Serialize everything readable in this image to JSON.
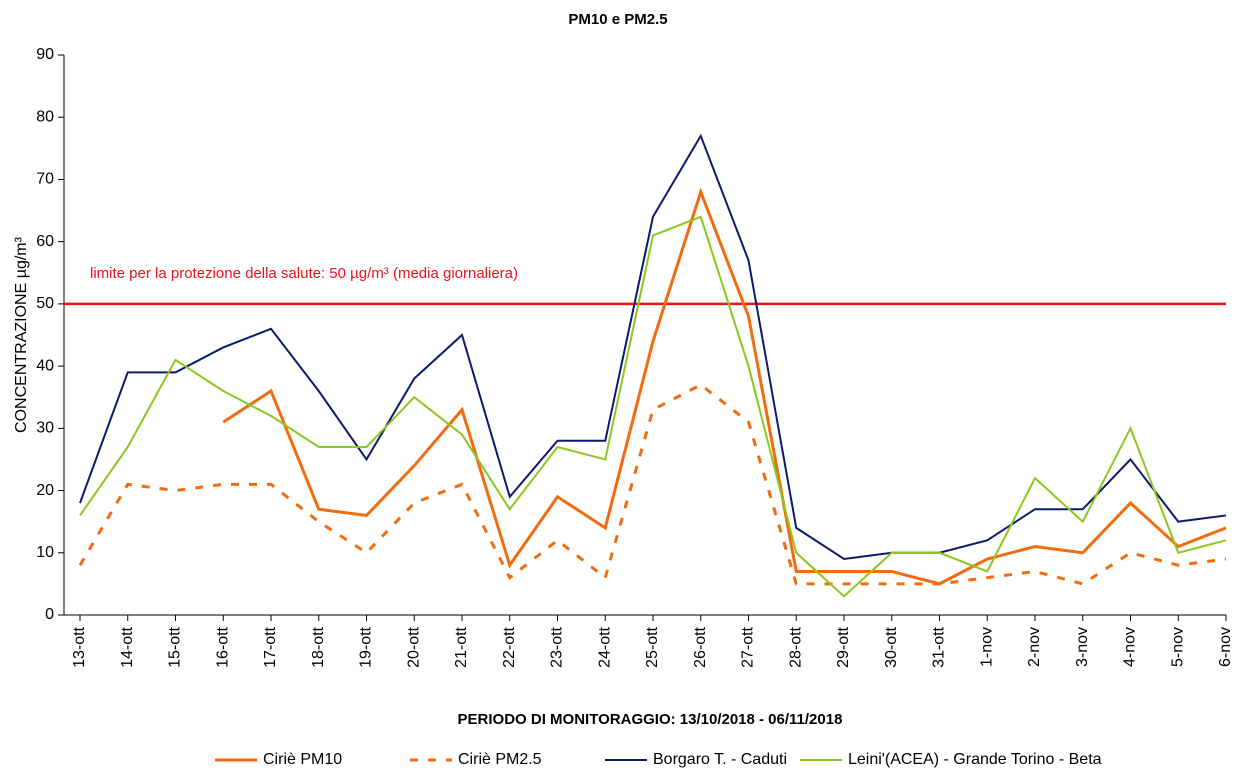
{
  "chart_data": {
    "type": "line",
    "title": "PM10 e PM2.5",
    "x_label": "PERIODO DI MONITORAGGIO: 13/10/2018 - 06/11/2018",
    "y_label": "CONCENTRAZIONE µg/m³",
    "categories": [
      "13-ott",
      "14-ott",
      "15-ott",
      "16-ott",
      "17-ott",
      "18-ott",
      "19-ott",
      "20-ott",
      "21-ott",
      "22-ott",
      "23-ott",
      "24-ott",
      "25-ott",
      "26-ott",
      "27-ott",
      "28-ott",
      "29-ott",
      "30-ott",
      "31-ott",
      "1-nov",
      "2-nov",
      "3-nov",
      "4-nov",
      "5-nov",
      "6-nov"
    ],
    "series": [
      {
        "name": "Ciriè PM10",
        "color": "#f26b0f",
        "dashed": false,
        "width": 3,
        "values": [
          null,
          null,
          null,
          31,
          36,
          17,
          16,
          24,
          33,
          8,
          19,
          14,
          44,
          68,
          48,
          7,
          7,
          7,
          5,
          9,
          11,
          10,
          18,
          11,
          14
        ]
      },
      {
        "name": "Ciriè PM2.5",
        "color": "#f26b0f",
        "dashed": true,
        "width": 3,
        "values": [
          8,
          21,
          20,
          21,
          21,
          15,
          10,
          18,
          21,
          6,
          12,
          6,
          33,
          37,
          31,
          5,
          5,
          5,
          5,
          6,
          7,
          5,
          10,
          8,
          9
        ]
      },
      {
        "name": "Borgaro T. - Caduti",
        "color": "#0a1a6e",
        "dashed": false,
        "width": 2,
        "values": [
          18,
          39,
          39,
          43,
          46,
          36,
          25,
          38,
          45,
          19,
          28,
          28,
          64,
          77,
          57,
          14,
          9,
          10,
          10,
          12,
          17,
          17,
          25,
          15,
          16
        ]
      },
      {
        "name": "Leini'(ACEA) - Grande Torino - Beta",
        "color": "#8cc71e",
        "dashed": false,
        "width": 2,
        "values": [
          16,
          27,
          41,
          36,
          32,
          27,
          27,
          35,
          29,
          17,
          27,
          25,
          61,
          64,
          40,
          10,
          3,
          10,
          10,
          7,
          22,
          15,
          30,
          10,
          12
        ]
      }
    ],
    "limit": 50,
    "limit_color": "#e8141a",
    "annotation": "limite per la protezione della salute: 50 µg/m³ (media giornaliera)",
    "ylim": [
      0,
      90
    ],
    "yticks": [
      0,
      10,
      20,
      30,
      40,
      50,
      60,
      70,
      80,
      90
    ]
  }
}
